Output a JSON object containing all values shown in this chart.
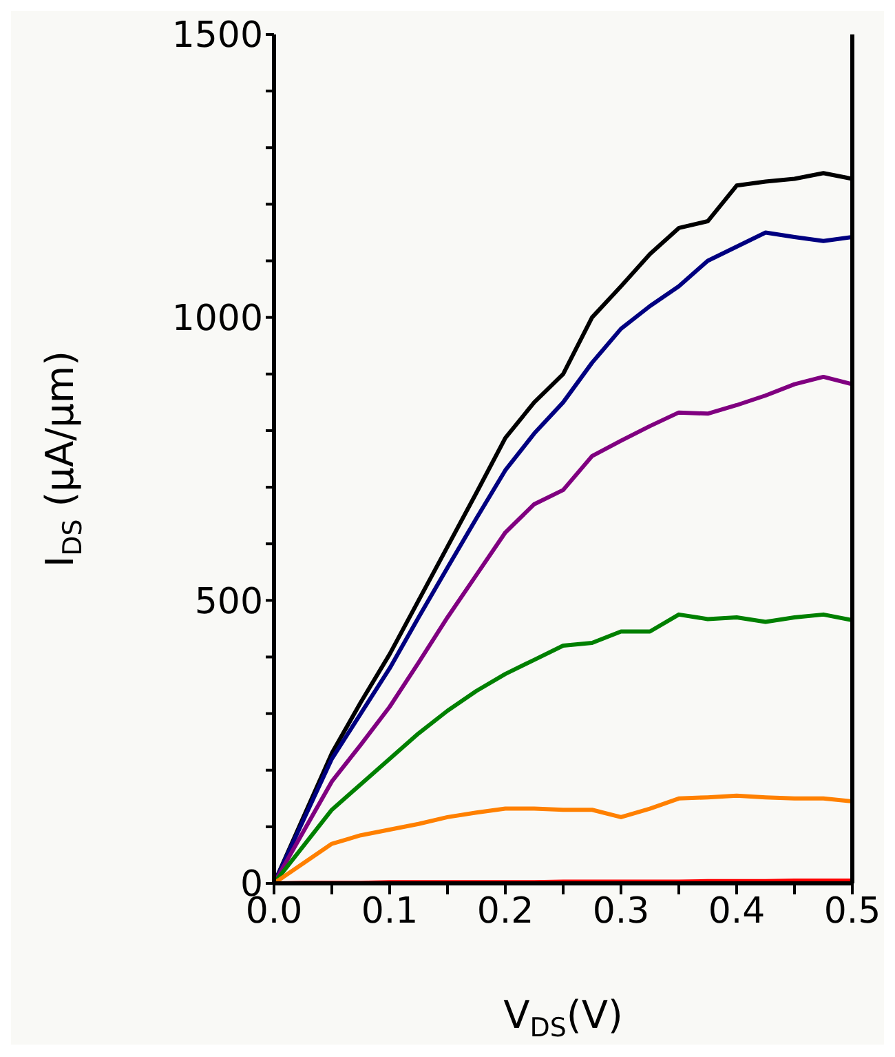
{
  "chart_data": {
    "type": "line",
    "xlabel": "V$_{DS}$(V)",
    "ylabel": "I$_{DS}$ (µA/µm)",
    "x": [
      0,
      0.025,
      0.05,
      0.075,
      0.1,
      0.125,
      0.15,
      0.175,
      0.2,
      0.225,
      0.25,
      0.275,
      0.3,
      0.325,
      0.35,
      0.375,
      0.4,
      0.425,
      0.45,
      0.475,
      0.5
    ],
    "series": [
      {
        "color": "#000000",
        "values": [
          0,
          115,
          230,
          320,
          405,
          500,
          595,
          690,
          787,
          850,
          900,
          1000,
          1055,
          1112,
          1158,
          1170,
          1233,
          1240,
          1245,
          1255,
          1245
        ]
      },
      {
        "color": "#000080",
        "values": [
          0,
          110,
          220,
          300,
          380,
          470,
          558,
          645,
          730,
          795,
          850,
          920,
          980,
          1020,
          1055,
          1100,
          1125,
          1150,
          1142,
          1135,
          1142
        ]
      },
      {
        "color": "#800080",
        "values": [
          0,
          90,
          180,
          245,
          312,
          390,
          470,
          545,
          620,
          670,
          695,
          755,
          782,
          808,
          832,
          830,
          845,
          862,
          882,
          895,
          882
        ]
      },
      {
        "color": "#008000",
        "values": [
          0,
          65,
          130,
          175,
          220,
          265,
          305,
          340,
          370,
          395,
          420,
          425,
          445,
          445,
          475,
          467,
          470,
          462,
          470,
          475,
          465
        ]
      },
      {
        "color": "#ff8000",
        "values": [
          0,
          35,
          70,
          85,
          95,
          105,
          117,
          125,
          132,
          132,
          130,
          130,
          117,
          132,
          150,
          152,
          155,
          152,
          150,
          150,
          145
        ]
      },
      {
        "color": "#ff0000",
        "values": [
          0,
          1,
          1,
          1,
          2,
          2,
          2,
          2,
          2,
          2,
          3,
          3,
          3,
          3,
          3,
          4,
          4,
          4,
          5,
          5,
          5
        ]
      }
    ],
    "xlim": [
      0,
      0.5
    ],
    "ylim": [
      0,
      1500
    ],
    "xticks": [
      {
        "value": 0,
        "label": "0.0"
      },
      {
        "value": 0.05,
        "label": null
      },
      0.1,
      {
        "value": 0.15,
        "label": null
      },
      0.2,
      {
        "value": 0.25,
        "label": null
      },
      0.3,
      {
        "value": 0.35,
        "label": null
      },
      0.4,
      {
        "value": 0.45,
        "label": null
      },
      0.5
    ],
    "yticks": [
      0,
      {
        "value": 100,
        "label": null
      },
      {
        "value": 200,
        "label": null
      },
      {
        "value": 300,
        "label": null
      },
      {
        "value": 400,
        "label": null
      },
      500,
      {
        "value": 600,
        "label": null
      },
      {
        "value": 700,
        "label": null
      },
      {
        "value": 800,
        "label": null
      },
      {
        "value": 900,
        "label": null
      },
      1000,
      {
        "value": 1100,
        "label": null
      },
      {
        "value": 1200,
        "label": null
      },
      {
        "value": 1300,
        "label": null
      },
      {
        "value": 1400,
        "label": null
      },
      1500
    ]
  }
}
